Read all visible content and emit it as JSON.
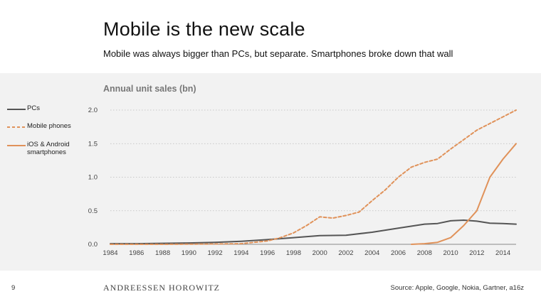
{
  "slide": {
    "title": "Mobile is the new scale",
    "subtitle": "Mobile was always bigger than PCs, but separate. Smartphones broke down that wall",
    "page_number": "9",
    "brand": "ANDREESSEN HOROWITZ",
    "source": "Source: Apple, Google, Nokia, Gartner, a16z"
  },
  "colors": {
    "panel_bg": "#f2f2f2",
    "pcs": "#555555",
    "mobile_phones": "#e0925a",
    "smartphones": "#e0925a",
    "grid": "#bbbbbb"
  },
  "chart_data": {
    "type": "line",
    "title": "Annual unit sales (bn)",
    "xlabel": "",
    "ylabel": "",
    "xlim": [
      1984,
      2015
    ],
    "ylim": [
      0,
      2.0
    ],
    "x_ticks": [
      "1984",
      "1986",
      "1988",
      "1990",
      "1992",
      "1994",
      "1996",
      "1998",
      "2000",
      "2002",
      "2004",
      "2006",
      "2008",
      "2010",
      "2012",
      "2014"
    ],
    "y_ticks": [
      "0.0",
      "0.5",
      "1.0",
      "1.5",
      "2.0"
    ],
    "grid": "horizontal dotted",
    "legend_position": "left",
    "series": [
      {
        "name": "PCs",
        "style": "solid",
        "x": [
          1984,
          1986,
          1988,
          1990,
          1992,
          1994,
          1996,
          1998,
          2000,
          2002,
          2004,
          2006,
          2008,
          2009,
          2010,
          2011,
          2012,
          2013,
          2014,
          2015
        ],
        "values": [
          0.01,
          0.01,
          0.015,
          0.02,
          0.03,
          0.045,
          0.07,
          0.1,
          0.13,
          0.135,
          0.18,
          0.24,
          0.3,
          0.31,
          0.35,
          0.36,
          0.345,
          0.315,
          0.31,
          0.3
        ]
      },
      {
        "name": "Mobile phones",
        "style": "dashed",
        "x": [
          1984,
          1988,
          1992,
          1994,
          1996,
          1997,
          1998,
          1999,
          2000,
          2001,
          2002,
          2003,
          2004,
          2005,
          2006,
          2007,
          2008,
          2009,
          2010,
          2011,
          2012,
          2013,
          2014,
          2015
        ],
        "values": [
          0.0,
          0.0,
          0.005,
          0.01,
          0.05,
          0.1,
          0.17,
          0.28,
          0.41,
          0.39,
          0.43,
          0.48,
          0.65,
          0.81,
          1.0,
          1.15,
          1.22,
          1.27,
          1.42,
          1.56,
          1.7,
          1.8,
          1.9,
          2.0
        ]
      },
      {
        "name": "iOS & Android smartphones",
        "style": "solid",
        "x": [
          2007,
          2008,
          2009,
          2010,
          2011,
          2012,
          2013,
          2014,
          2015
        ],
        "values": [
          0.0,
          0.01,
          0.03,
          0.1,
          0.28,
          0.5,
          1.0,
          1.27,
          1.5
        ]
      }
    ]
  }
}
